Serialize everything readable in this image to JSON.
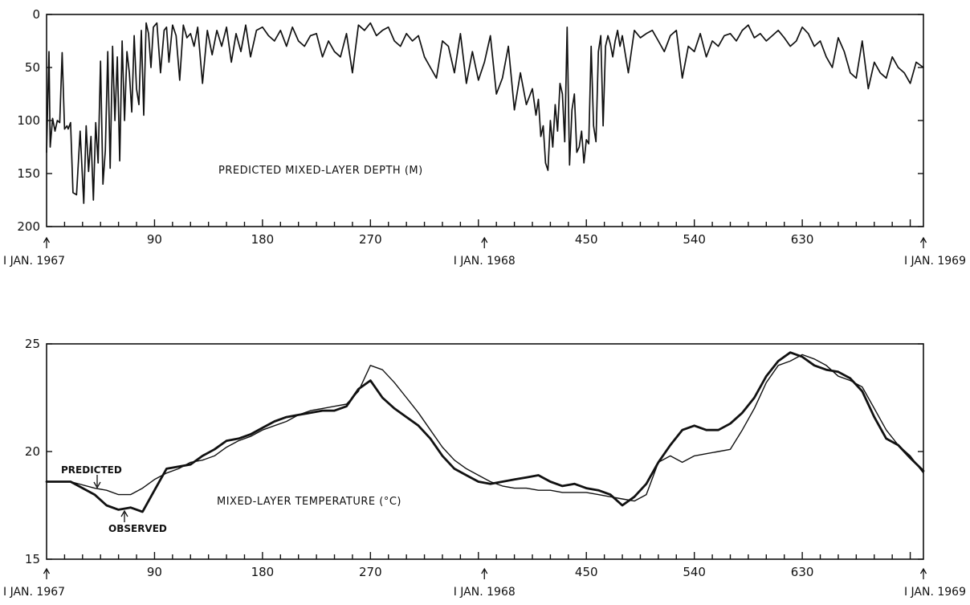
{
  "chart_data": [
    {
      "type": "line",
      "title": "PREDICTED MIXED-LAYER DEPTH (M)",
      "xlabel": "",
      "ylabel": "",
      "xlim": [
        0,
        731
      ],
      "ylim": [
        200,
        0
      ],
      "y_inverted": true,
      "yticks": [
        "0",
        "50",
        "100",
        "150",
        "200"
      ],
      "xticks": [
        "90",
        "180",
        "270",
        "450",
        "540",
        "630"
      ],
      "date_markers": [
        {
          "day": 0,
          "label": "I JAN. 1967"
        },
        {
          "day": 365,
          "label": "I JAN. 1968"
        },
        {
          "day": 731,
          "label": "I JAN. 1969"
        }
      ],
      "series": [
        {
          "name": "",
          "x": [
            0,
            2,
            3,
            5,
            7,
            9,
            11,
            13,
            15,
            17,
            18,
            20,
            22,
            25,
            28,
            31,
            33,
            35,
            37,
            39,
            41,
            43,
            45,
            47,
            49,
            51,
            53,
            55,
            57,
            59,
            61,
            63,
            65,
            67,
            69,
            71,
            73,
            75,
            77,
            79,
            81,
            83,
            85,
            87,
            89,
            92,
            95,
            98,
            100,
            102,
            105,
            108,
            111,
            114,
            117,
            120,
            123,
            126,
            130,
            134,
            138,
            142,
            146,
            150,
            154,
            158,
            162,
            166,
            170,
            175,
            180,
            185,
            190,
            195,
            200,
            205,
            210,
            215,
            220,
            225,
            230,
            235,
            240,
            245,
            250,
            255,
            260,
            265,
            270,
            275,
            280,
            285,
            290,
            295,
            300,
            305,
            310,
            315,
            320,
            325,
            330,
            335,
            340,
            345,
            350,
            355,
            360,
            365,
            370,
            375,
            380,
            385,
            390,
            395,
            400,
            405,
            408,
            410,
            412,
            414,
            416,
            418,
            420,
            422,
            424,
            426,
            428,
            430,
            432,
            434,
            436,
            438,
            440,
            442,
            444,
            446,
            448,
            450,
            452,
            454,
            456,
            458,
            460,
            462,
            464,
            466,
            468,
            470,
            472,
            474,
            476,
            478,
            480,
            485,
            490,
            495,
            500,
            505,
            510,
            515,
            520,
            525,
            530,
            535,
            540,
            545,
            550,
            555,
            560,
            565,
            570,
            575,
            580,
            585,
            590,
            595,
            600,
            605,
            610,
            615,
            620,
            625,
            630,
            635,
            640,
            645,
            650,
            655,
            660,
            665,
            670,
            675,
            680,
            685,
            690,
            695,
            700,
            705,
            710,
            715,
            720,
            725,
            731
          ],
          "y": [
            130,
            35,
            125,
            98,
            110,
            100,
            102,
            36,
            108,
            105,
            108,
            102,
            168,
            170,
            110,
            178,
            105,
            148,
            115,
            175,
            102,
            140,
            44,
            160,
            128,
            35,
            145,
            30,
            100,
            40,
            138,
            25,
            100,
            35,
            55,
            92,
            20,
            70,
            85,
            15,
            95,
            8,
            18,
            50,
            12,
            8,
            55,
            15,
            12,
            45,
            10,
            20,
            62,
            10,
            22,
            18,
            30,
            12,
            65,
            15,
            38,
            15,
            30,
            12,
            45,
            18,
            35,
            10,
            40,
            15,
            12,
            20,
            25,
            15,
            30,
            12,
            25,
            30,
            20,
            18,
            40,
            25,
            35,
            40,
            18,
            55,
            10,
            15,
            8,
            20,
            15,
            12,
            25,
            30,
            18,
            25,
            20,
            40,
            50,
            60,
            25,
            30,
            55,
            18,
            65,
            35,
            62,
            45,
            20,
            75,
            60,
            30,
            90,
            55,
            85,
            70,
            95,
            80,
            115,
            105,
            140,
            147,
            100,
            125,
            85,
            110,
            65,
            75,
            120,
            12,
            142,
            90,
            75,
            130,
            125,
            110,
            140,
            118,
            122,
            30,
            105,
            120,
            35,
            20,
            105,
            30,
            20,
            28,
            40,
            25,
            15,
            30,
            20,
            55,
            15,
            22,
            18,
            15,
            25,
            35,
            20,
            15,
            60,
            30,
            35,
            18,
            40,
            25,
            30,
            20,
            18,
            25,
            15,
            10,
            22,
            18,
            25,
            20,
            15,
            22,
            30,
            25,
            12,
            18,
            30,
            25,
            40,
            50,
            22,
            35,
            55,
            60,
            25,
            70,
            45,
            55,
            60,
            40,
            50,
            55,
            65,
            45,
            50
          ]
        }
      ]
    },
    {
      "type": "line",
      "title": "MIXED-LAYER TEMPERATURE (°C)",
      "xlabel": "",
      "ylabel": "",
      "xlim": [
        0,
        731
      ],
      "ylim": [
        15,
        25
      ],
      "yticks": [
        "15",
        "20",
        "25"
      ],
      "xticks": [
        "90",
        "180",
        "270",
        "450",
        "540",
        "630"
      ],
      "date_markers": [
        {
          "day": 0,
          "label": "I JAN. 1967"
        },
        {
          "day": 365,
          "label": "I JAN. 1968"
        },
        {
          "day": 731,
          "label": "I JAN. 1969"
        }
      ],
      "series": [
        {
          "name": "PREDICTED",
          "x": [
            0,
            20,
            40,
            50,
            60,
            70,
            80,
            90,
            100,
            110,
            120,
            130,
            140,
            150,
            160,
            170,
            180,
            190,
            200,
            210,
            220,
            230,
            240,
            250,
            260,
            270,
            280,
            290,
            300,
            310,
            320,
            330,
            340,
            350,
            360,
            370,
            380,
            390,
            400,
            410,
            420,
            430,
            440,
            450,
            460,
            470,
            480,
            490,
            500,
            510,
            520,
            530,
            540,
            550,
            560,
            570,
            580,
            590,
            600,
            610,
            620,
            630,
            640,
            650,
            660,
            670,
            680,
            690,
            700,
            710,
            720,
            731
          ],
          "y": [
            18.6,
            18.6,
            18.3,
            18.2,
            18.0,
            18.0,
            18.3,
            18.7,
            19.0,
            19.2,
            19.5,
            19.6,
            19.8,
            20.2,
            20.5,
            20.7,
            21.0,
            21.2,
            21.4,
            21.7,
            21.9,
            22.0,
            22.1,
            22.2,
            22.8,
            24.0,
            23.8,
            23.2,
            22.5,
            21.8,
            21.0,
            20.2,
            19.6,
            19.2,
            18.9,
            18.6,
            18.4,
            18.3,
            18.3,
            18.2,
            18.2,
            18.1,
            18.1,
            18.1,
            18.0,
            17.9,
            17.8,
            17.7,
            18.0,
            19.5,
            19.8,
            19.5,
            19.8,
            19.9,
            20.0,
            20.1,
            21.0,
            22.0,
            23.2,
            24.0,
            24.2,
            24.5,
            24.3,
            24.0,
            23.5,
            23.3,
            23.0,
            22.0,
            21.0,
            20.3,
            19.8,
            19.0
          ]
        },
        {
          "name": "OBSERVED",
          "x": [
            0,
            20,
            40,
            50,
            60,
            70,
            80,
            90,
            100,
            110,
            120,
            130,
            140,
            150,
            160,
            170,
            180,
            190,
            200,
            210,
            220,
            230,
            240,
            250,
            260,
            270,
            280,
            290,
            300,
            310,
            320,
            330,
            340,
            350,
            360,
            370,
            380,
            390,
            400,
            410,
            420,
            430,
            440,
            450,
            460,
            470,
            480,
            490,
            500,
            510,
            520,
            530,
            540,
            550,
            560,
            570,
            580,
            590,
            600,
            610,
            620,
            630,
            640,
            650,
            660,
            670,
            680,
            690,
            700,
            710,
            720,
            731
          ],
          "y": [
            18.6,
            18.6,
            18.0,
            17.5,
            17.3,
            17.4,
            17.2,
            18.2,
            19.2,
            19.3,
            19.4,
            19.8,
            20.1,
            20.5,
            20.6,
            20.8,
            21.1,
            21.4,
            21.6,
            21.7,
            21.8,
            21.9,
            21.9,
            22.1,
            22.9,
            23.3,
            22.5,
            22.0,
            21.6,
            21.2,
            20.6,
            19.8,
            19.2,
            18.9,
            18.6,
            18.5,
            18.6,
            18.7,
            18.8,
            18.9,
            18.6,
            18.4,
            18.5,
            18.3,
            18.2,
            18.0,
            17.5,
            17.9,
            18.5,
            19.5,
            20.3,
            21.0,
            21.2,
            21.0,
            21.0,
            21.3,
            21.8,
            22.5,
            23.5,
            24.2,
            24.6,
            24.4,
            24.0,
            23.8,
            23.7,
            23.4,
            22.8,
            21.6,
            20.6,
            20.3,
            19.7,
            19.1
          ]
        }
      ],
      "annotations": [
        "PREDICTED",
        "OBSERVED"
      ]
    }
  ]
}
